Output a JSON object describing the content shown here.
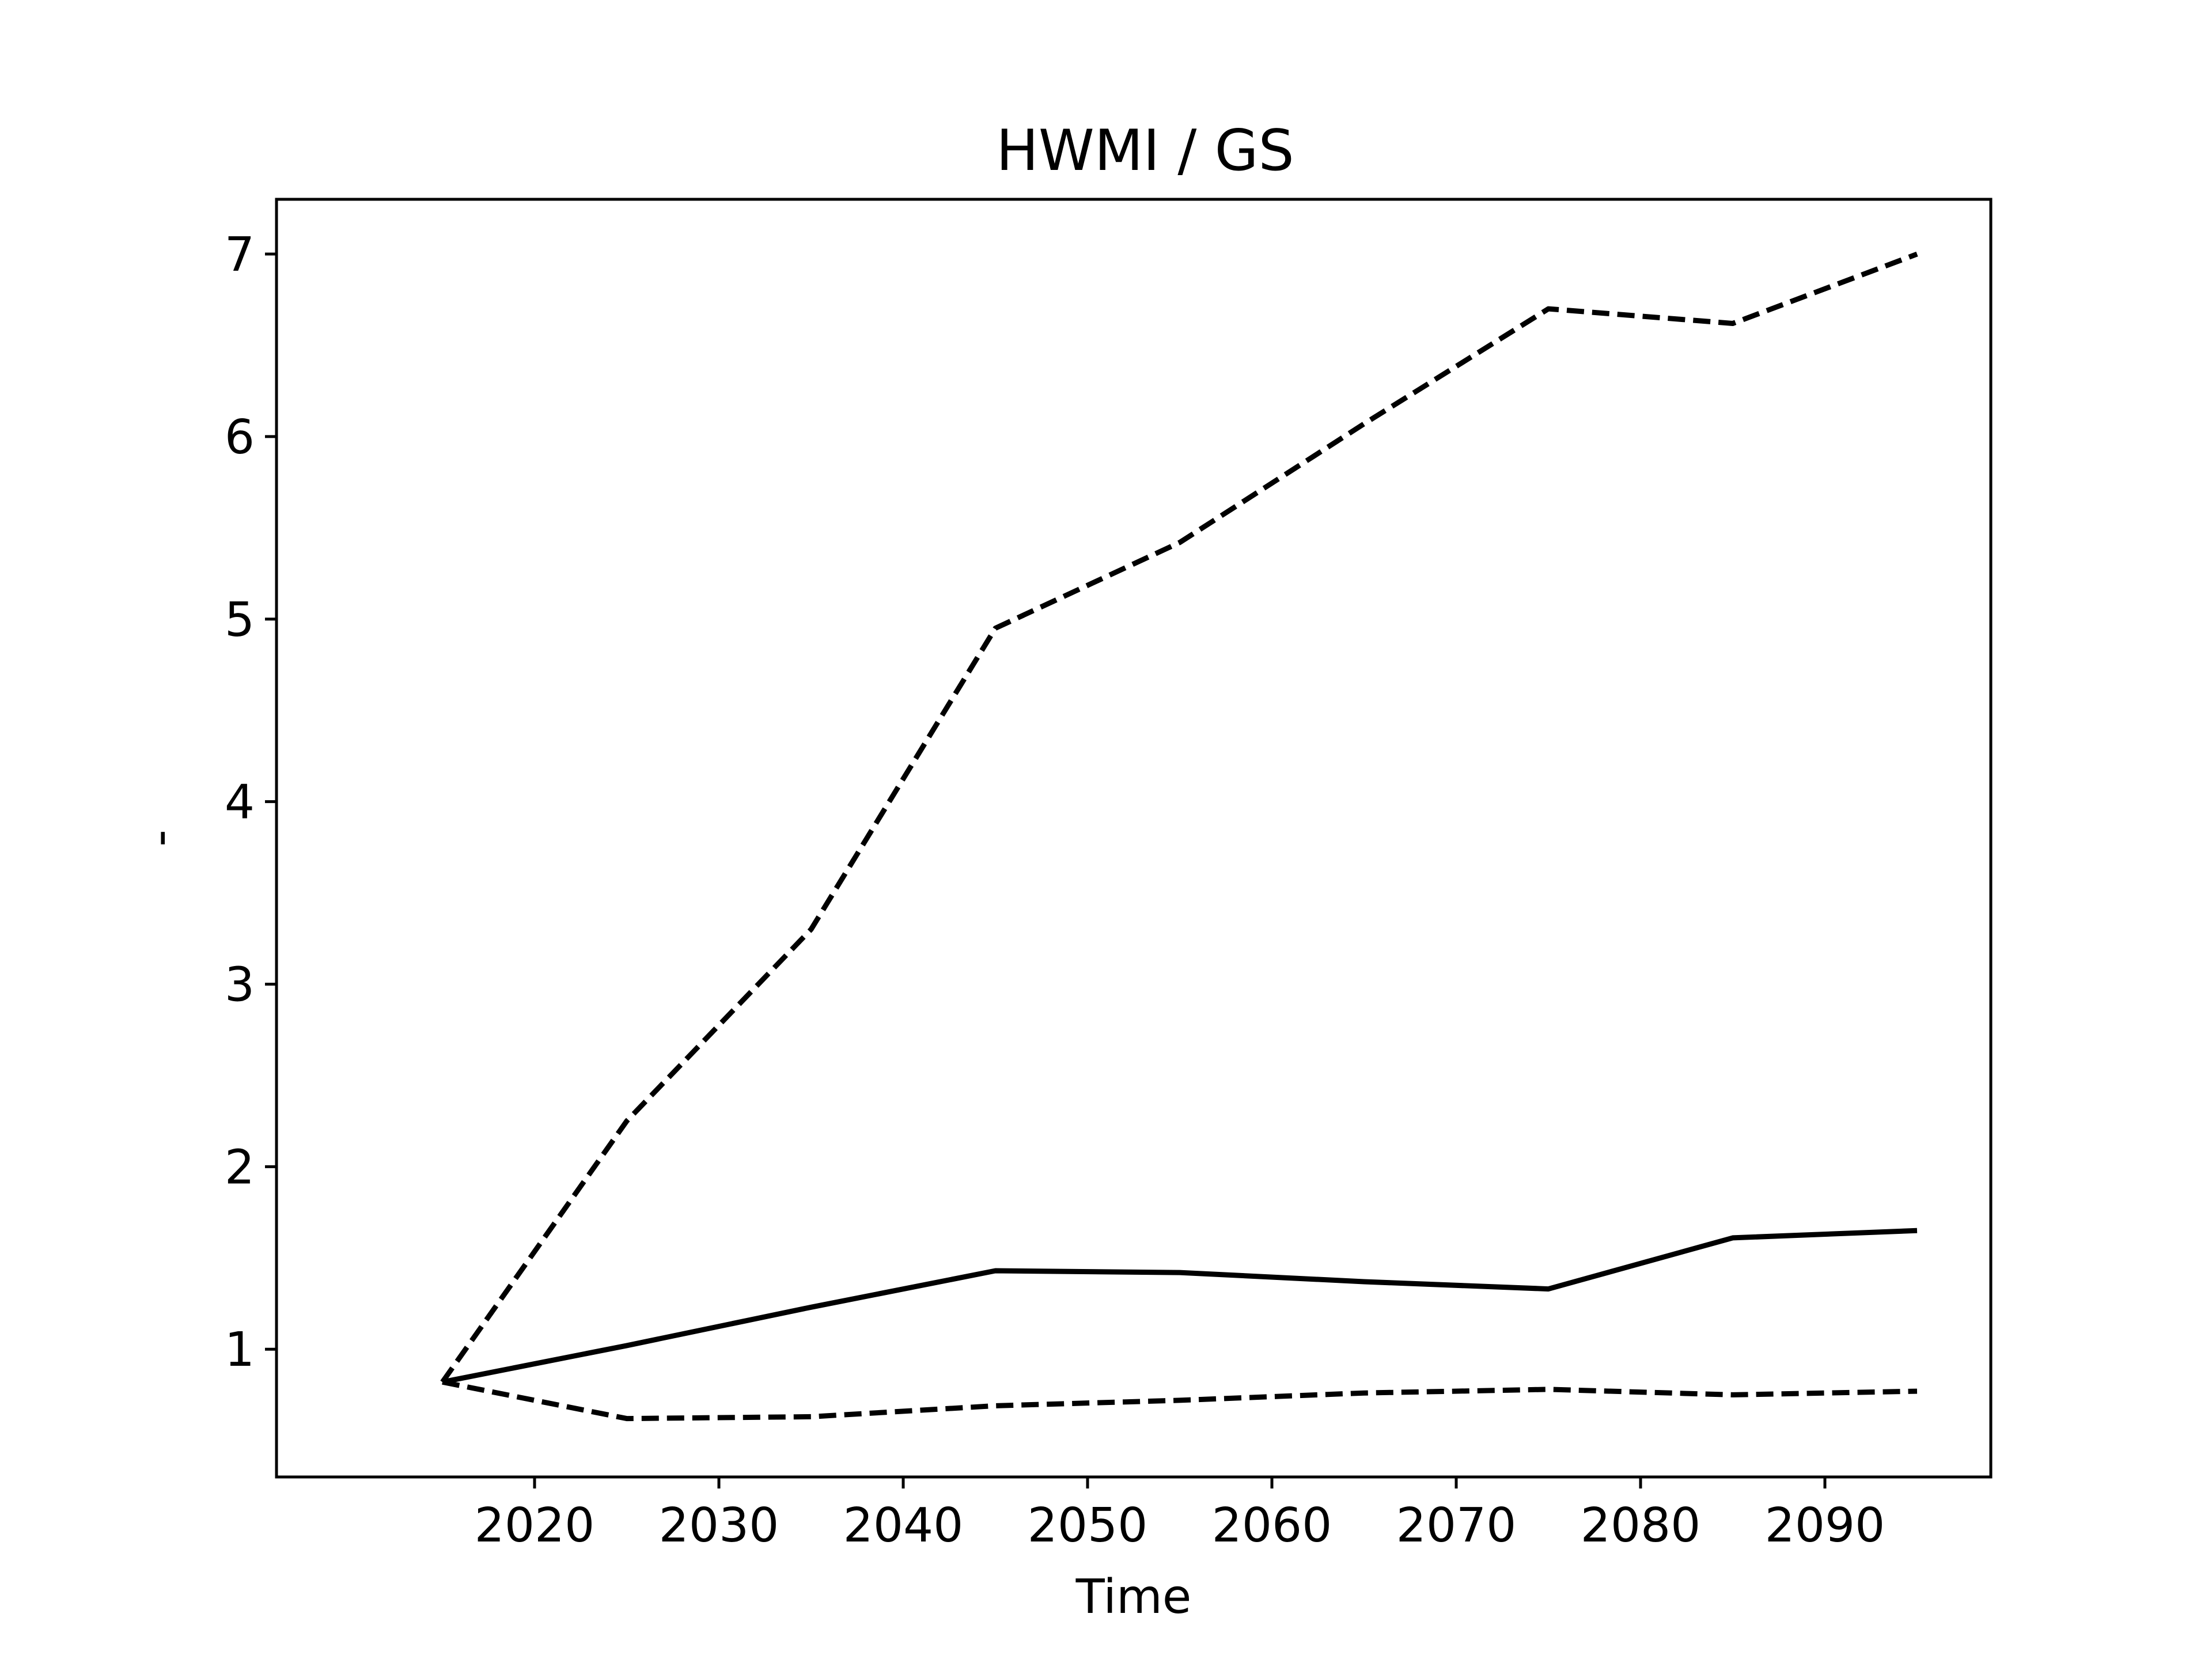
{
  "chart_data": {
    "type": "line",
    "title": "HWMI / GS",
    "xlabel": "Time",
    "ylabel": "-",
    "x": [
      2015,
      2025,
      2035,
      2045,
      2055,
      2065,
      2075,
      2085,
      2095
    ],
    "xlim": [
      2006,
      2099
    ],
    "ylim": [
      0.3,
      7.3
    ],
    "xticks": [
      2020,
      2030,
      2040,
      2050,
      2060,
      2070,
      2080,
      2090
    ],
    "yticks": [
      1,
      2,
      3,
      4,
      5,
      6,
      7
    ],
    "grid": false,
    "series": [
      {
        "style": "dashed",
        "color": "#000000",
        "values": [
          0.82,
          2.25,
          3.3,
          4.95,
          5.42,
          6.07,
          6.7,
          6.62,
          7.0
        ]
      },
      {
        "style": "solid",
        "color": "#000000",
        "values": [
          0.82,
          1.02,
          1.23,
          1.43,
          1.42,
          1.37,
          1.33,
          1.61,
          1.65
        ]
      },
      {
        "style": "dashed",
        "color": "#000000",
        "values": [
          0.82,
          0.62,
          0.63,
          0.69,
          0.72,
          0.76,
          0.78,
          0.75,
          0.77
        ]
      }
    ]
  }
}
